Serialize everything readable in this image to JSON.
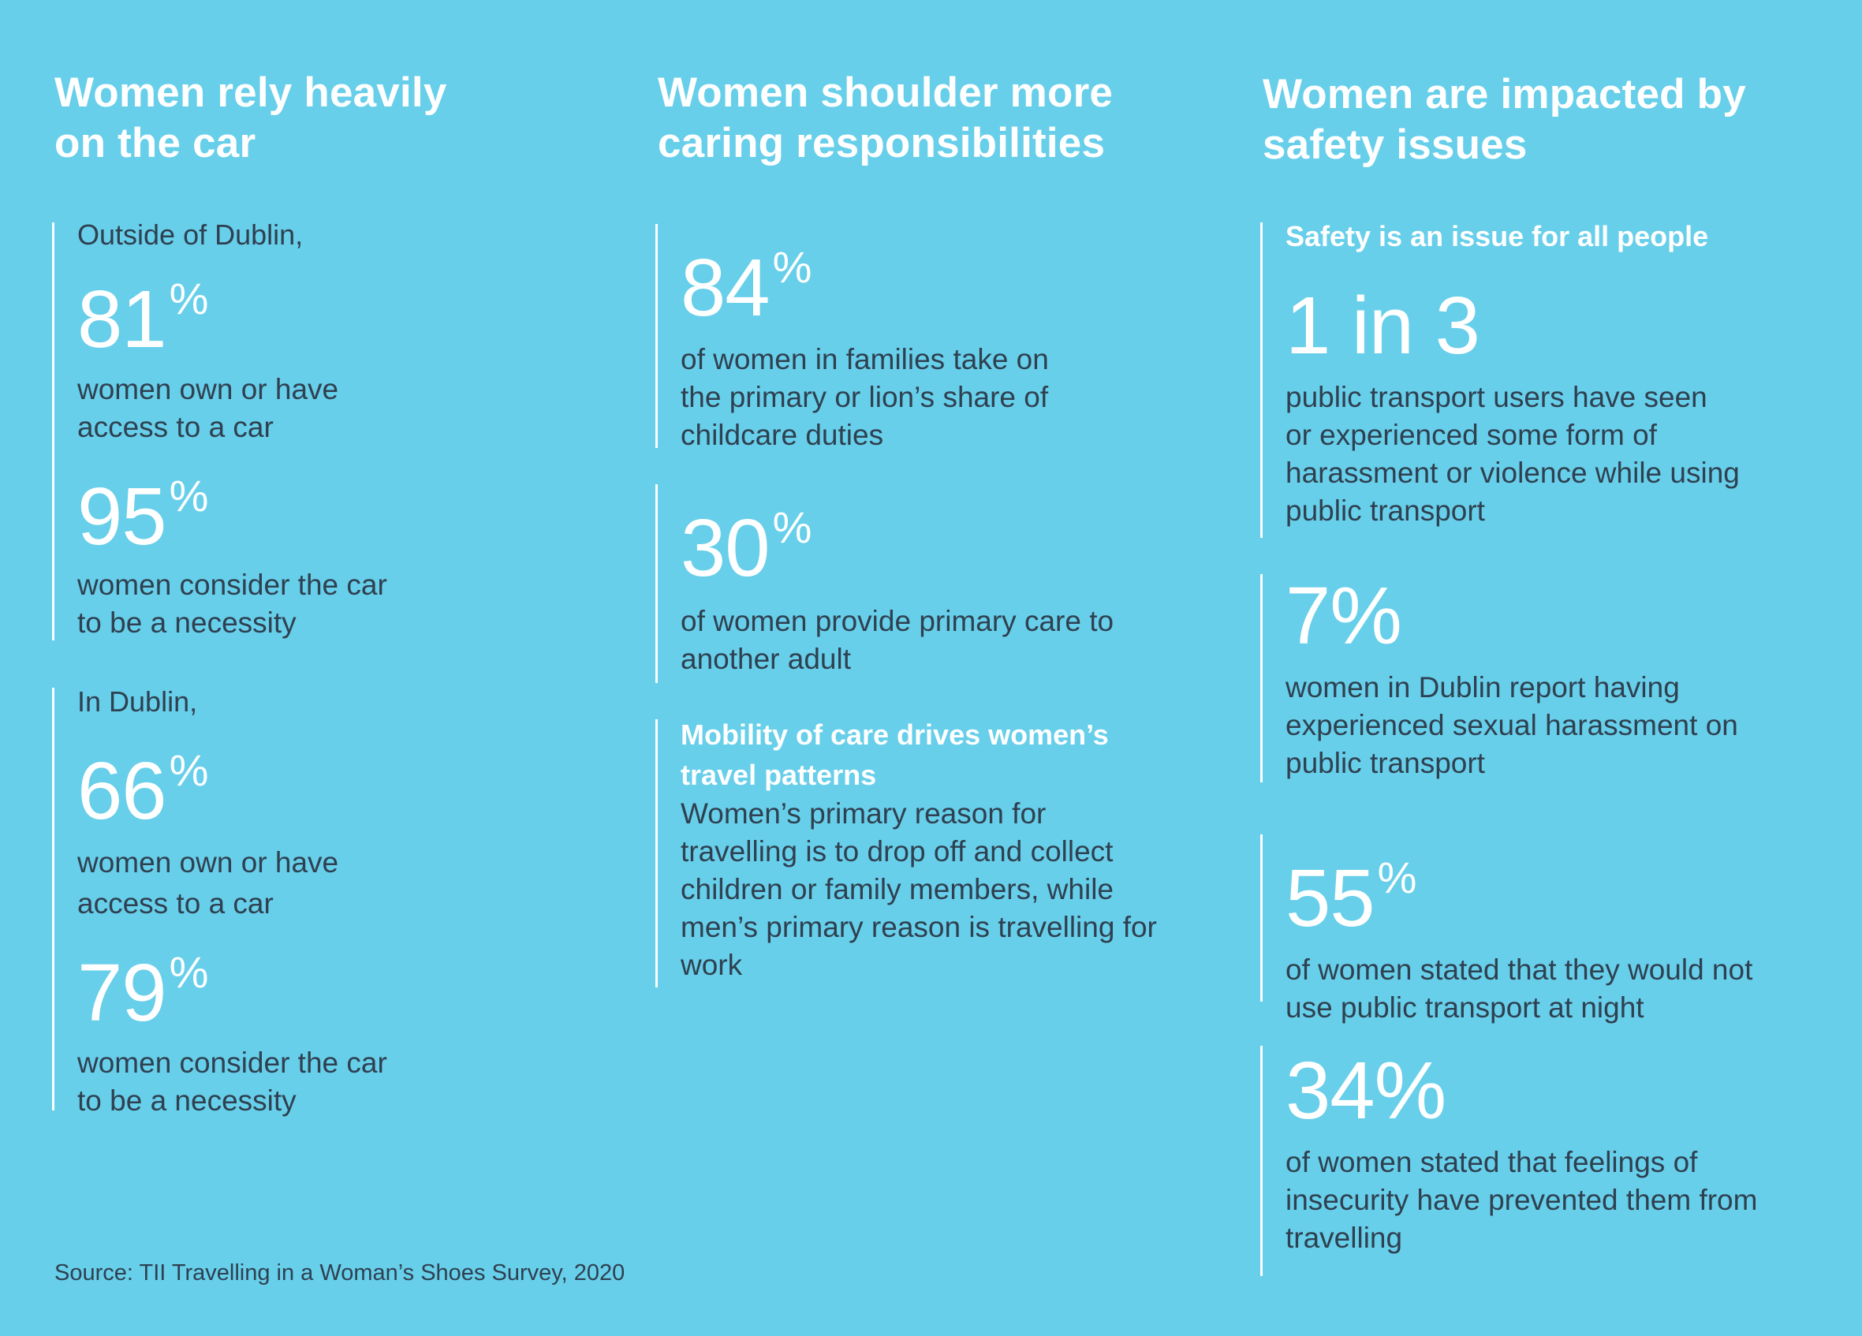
{
  "columns": [
    {
      "heading_lines": [
        "Women rely heavily",
        "on the car"
      ],
      "outside_dublin": {
        "intro": "Outside of Dublin,",
        "stats": [
          {
            "value": "81",
            "unit": "%",
            "text_lines": [
              "women own or have",
              "access to a car"
            ]
          },
          {
            "value": "95",
            "unit": "%",
            "text_lines": [
              "women consider the car",
              "to be a necessity"
            ]
          }
        ]
      },
      "in_dublin": {
        "intro": "In Dublin,",
        "stats": [
          {
            "value": "66",
            "unit": "%",
            "text_lines": [
              "women own or have",
              "access to a car"
            ]
          },
          {
            "value": "79",
            "unit": "%",
            "text_lines": [
              "women consider the car",
              "to be a necessity"
            ]
          }
        ]
      }
    },
    {
      "heading_lines": [
        "Women shoulder more",
        "caring responsibilities"
      ],
      "stats": [
        {
          "value": "84",
          "unit": "%",
          "text_lines": [
            "of women in families take on",
            "the primary or lion’s share of",
            "childcare duties"
          ]
        },
        {
          "value": "30",
          "unit": "%",
          "text_lines": [
            "of women provide primary care to",
            "another adult"
          ]
        }
      ],
      "mobility": {
        "subhead_lines": [
          "Mobility of care drives women’s",
          "travel patterns"
        ],
        "text_lines": [
          "Women’s primary reason for",
          "travelling is to drop off and collect",
          "children or family members, while",
          "men’s primary reason is travelling for",
          "work"
        ]
      }
    },
    {
      "heading_lines": [
        "Women are impacted by",
        "safety issues"
      ],
      "safety_subhead": "Safety is an issue for all people",
      "stats": [
        {
          "value": "1 in 3",
          "unit": "",
          "text_lines": [
            "public transport users have seen",
            "or experienced some form of",
            "harassment or violence while using",
            "public transport"
          ]
        },
        {
          "value": "7%",
          "unit": "",
          "text_lines": [
            "women in Dublin report having",
            "experienced sexual harassment on",
            "public transport"
          ]
        },
        {
          "value": "55",
          "unit": "%",
          "text_lines": [
            "of women stated that they would not",
            "use public transport at night"
          ]
        },
        {
          "value": "34%",
          "unit": "",
          "text_lines": [
            "of women stated that feelings of",
            "insecurity have prevented them from",
            "travelling"
          ]
        }
      ]
    }
  ],
  "source": "Source: TII Travelling in a Woman’s Shoes Survey, 2020",
  "colors": {
    "background": "#67cfea",
    "accent_text": "#ffffff",
    "body_text": "#2f4050"
  }
}
